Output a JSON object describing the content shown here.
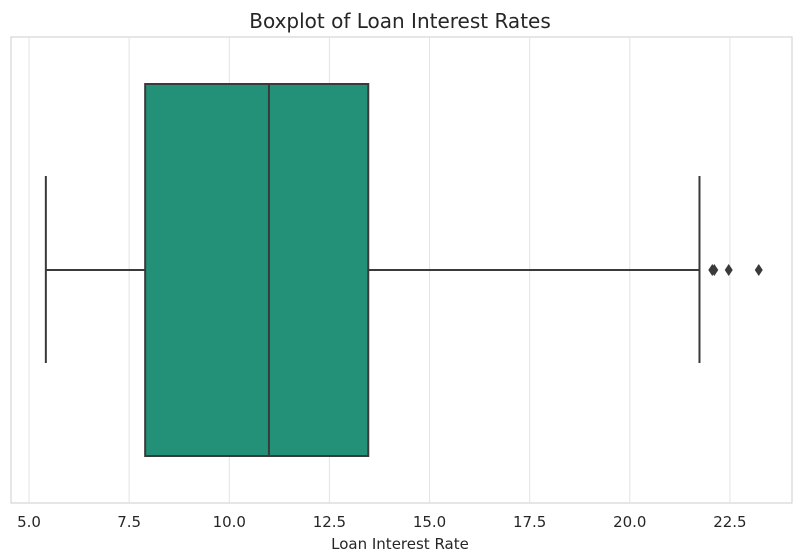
{
  "chart_data": {
    "type": "boxplot",
    "title": "Boxplot of Loan Interest Rates",
    "xlabel": "Loan Interest Rate",
    "ylabel": "",
    "xlim": [
      4.55,
      24.05
    ],
    "x_ticks": [
      5.0,
      7.5,
      10.0,
      12.5,
      15.0,
      17.5,
      20.0,
      22.5
    ],
    "x_tick_labels": [
      "5.0",
      "7.5",
      "10.0",
      "12.5",
      "15.0",
      "17.5",
      "20.0",
      "22.5"
    ],
    "grid": true,
    "box": {
      "whisker_low": 5.42,
      "q1": 7.9,
      "median": 10.99,
      "q3": 13.47,
      "whisker_high": 21.74,
      "outliers": [
        22.06,
        22.11,
        22.47,
        23.22
      ]
    },
    "colors": {
      "box_fill": "#229177",
      "line": "#3a3a3a",
      "grid": "#e3e3e3",
      "frame": "#cccccc"
    }
  }
}
